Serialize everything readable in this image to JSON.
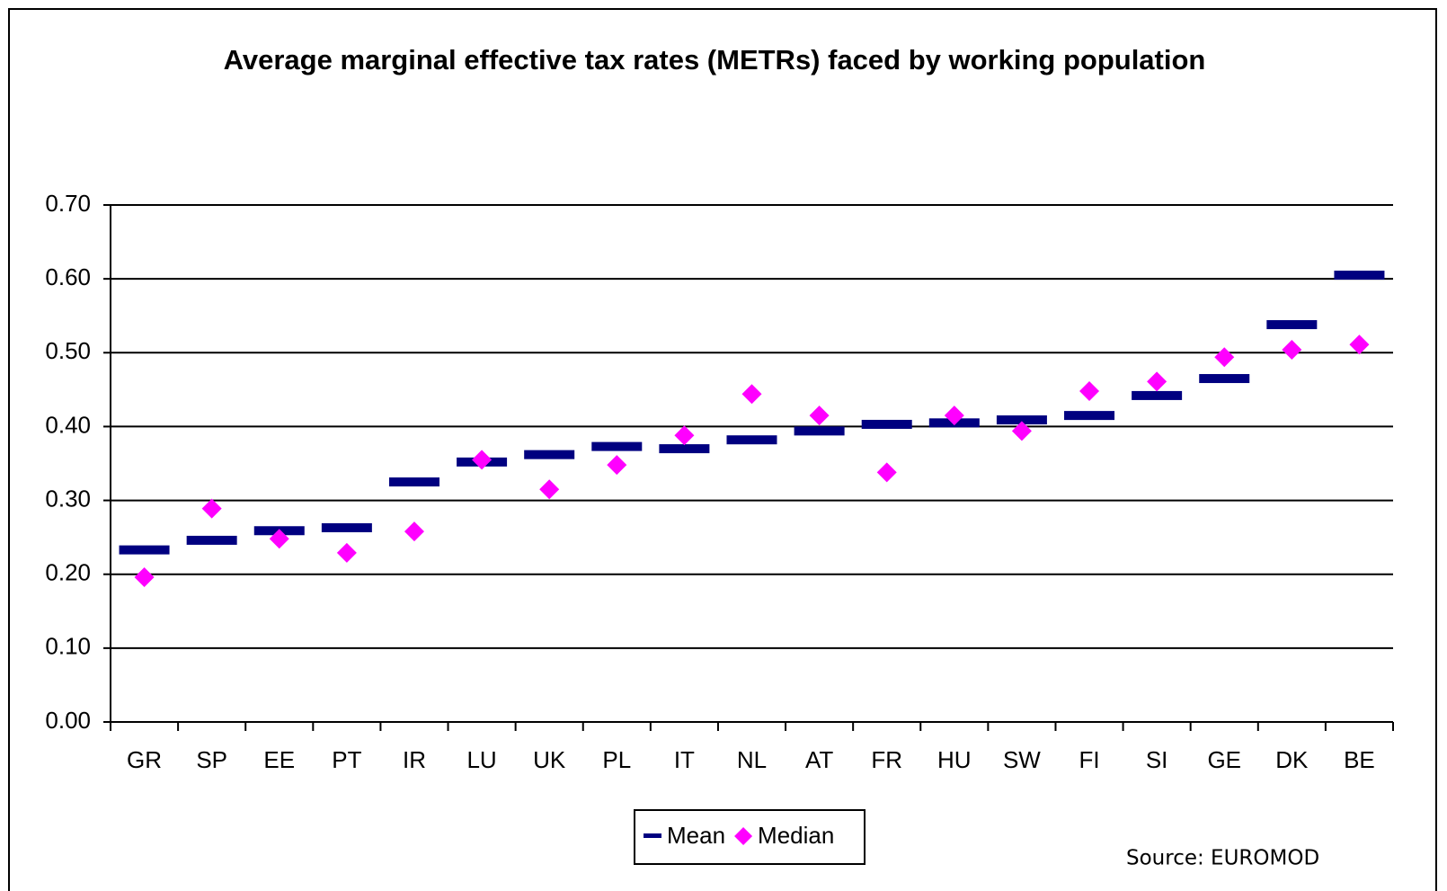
{
  "chart_data": {
    "type": "scatter",
    "title": "Average marginal effective tax rates (METRs) faced by working population",
    "categories": [
      "GR",
      "SP",
      "EE",
      "PT",
      "IR",
      "LU",
      "UK",
      "PL",
      "IT",
      "NL",
      "AT",
      "FR",
      "HU",
      "SW",
      "FI",
      "SI",
      "GE",
      "DK",
      "BE"
    ],
    "series": [
      {
        "name": "Mean",
        "color": "#000080",
        "marker": "dash",
        "values": [
          0.233,
          0.246,
          0.259,
          0.263,
          0.325,
          0.352,
          0.362,
          0.373,
          0.37,
          0.382,
          0.394,
          0.403,
          0.405,
          0.409,
          0.415,
          0.442,
          0.465,
          0.538,
          0.605
        ]
      },
      {
        "name": "Median",
        "color": "#ff00ff",
        "marker": "diamond",
        "values": [
          0.196,
          0.289,
          0.248,
          0.229,
          0.258,
          0.355,
          0.315,
          0.348,
          0.388,
          0.444,
          0.415,
          0.338,
          0.415,
          0.394,
          0.448,
          0.461,
          0.494,
          0.504,
          0.511
        ]
      }
    ],
    "ylim": [
      0,
      0.7
    ],
    "yticks": [
      {
        "value": 0,
        "label": "0.00"
      },
      {
        "value": 0.1,
        "label": "0.10"
      },
      {
        "value": 0.2,
        "label": "0.20"
      },
      {
        "value": 0.3,
        "label": "0.30"
      },
      {
        "value": 0.4,
        "label": "0.40"
      },
      {
        "value": 0.5,
        "label": "0.50"
      },
      {
        "value": 0.6,
        "label": "0.60"
      },
      {
        "value": 0.7,
        "label": "0.70"
      }
    ],
    "grid": true,
    "legend": "bottom",
    "source": "Source: EUROMOD"
  }
}
